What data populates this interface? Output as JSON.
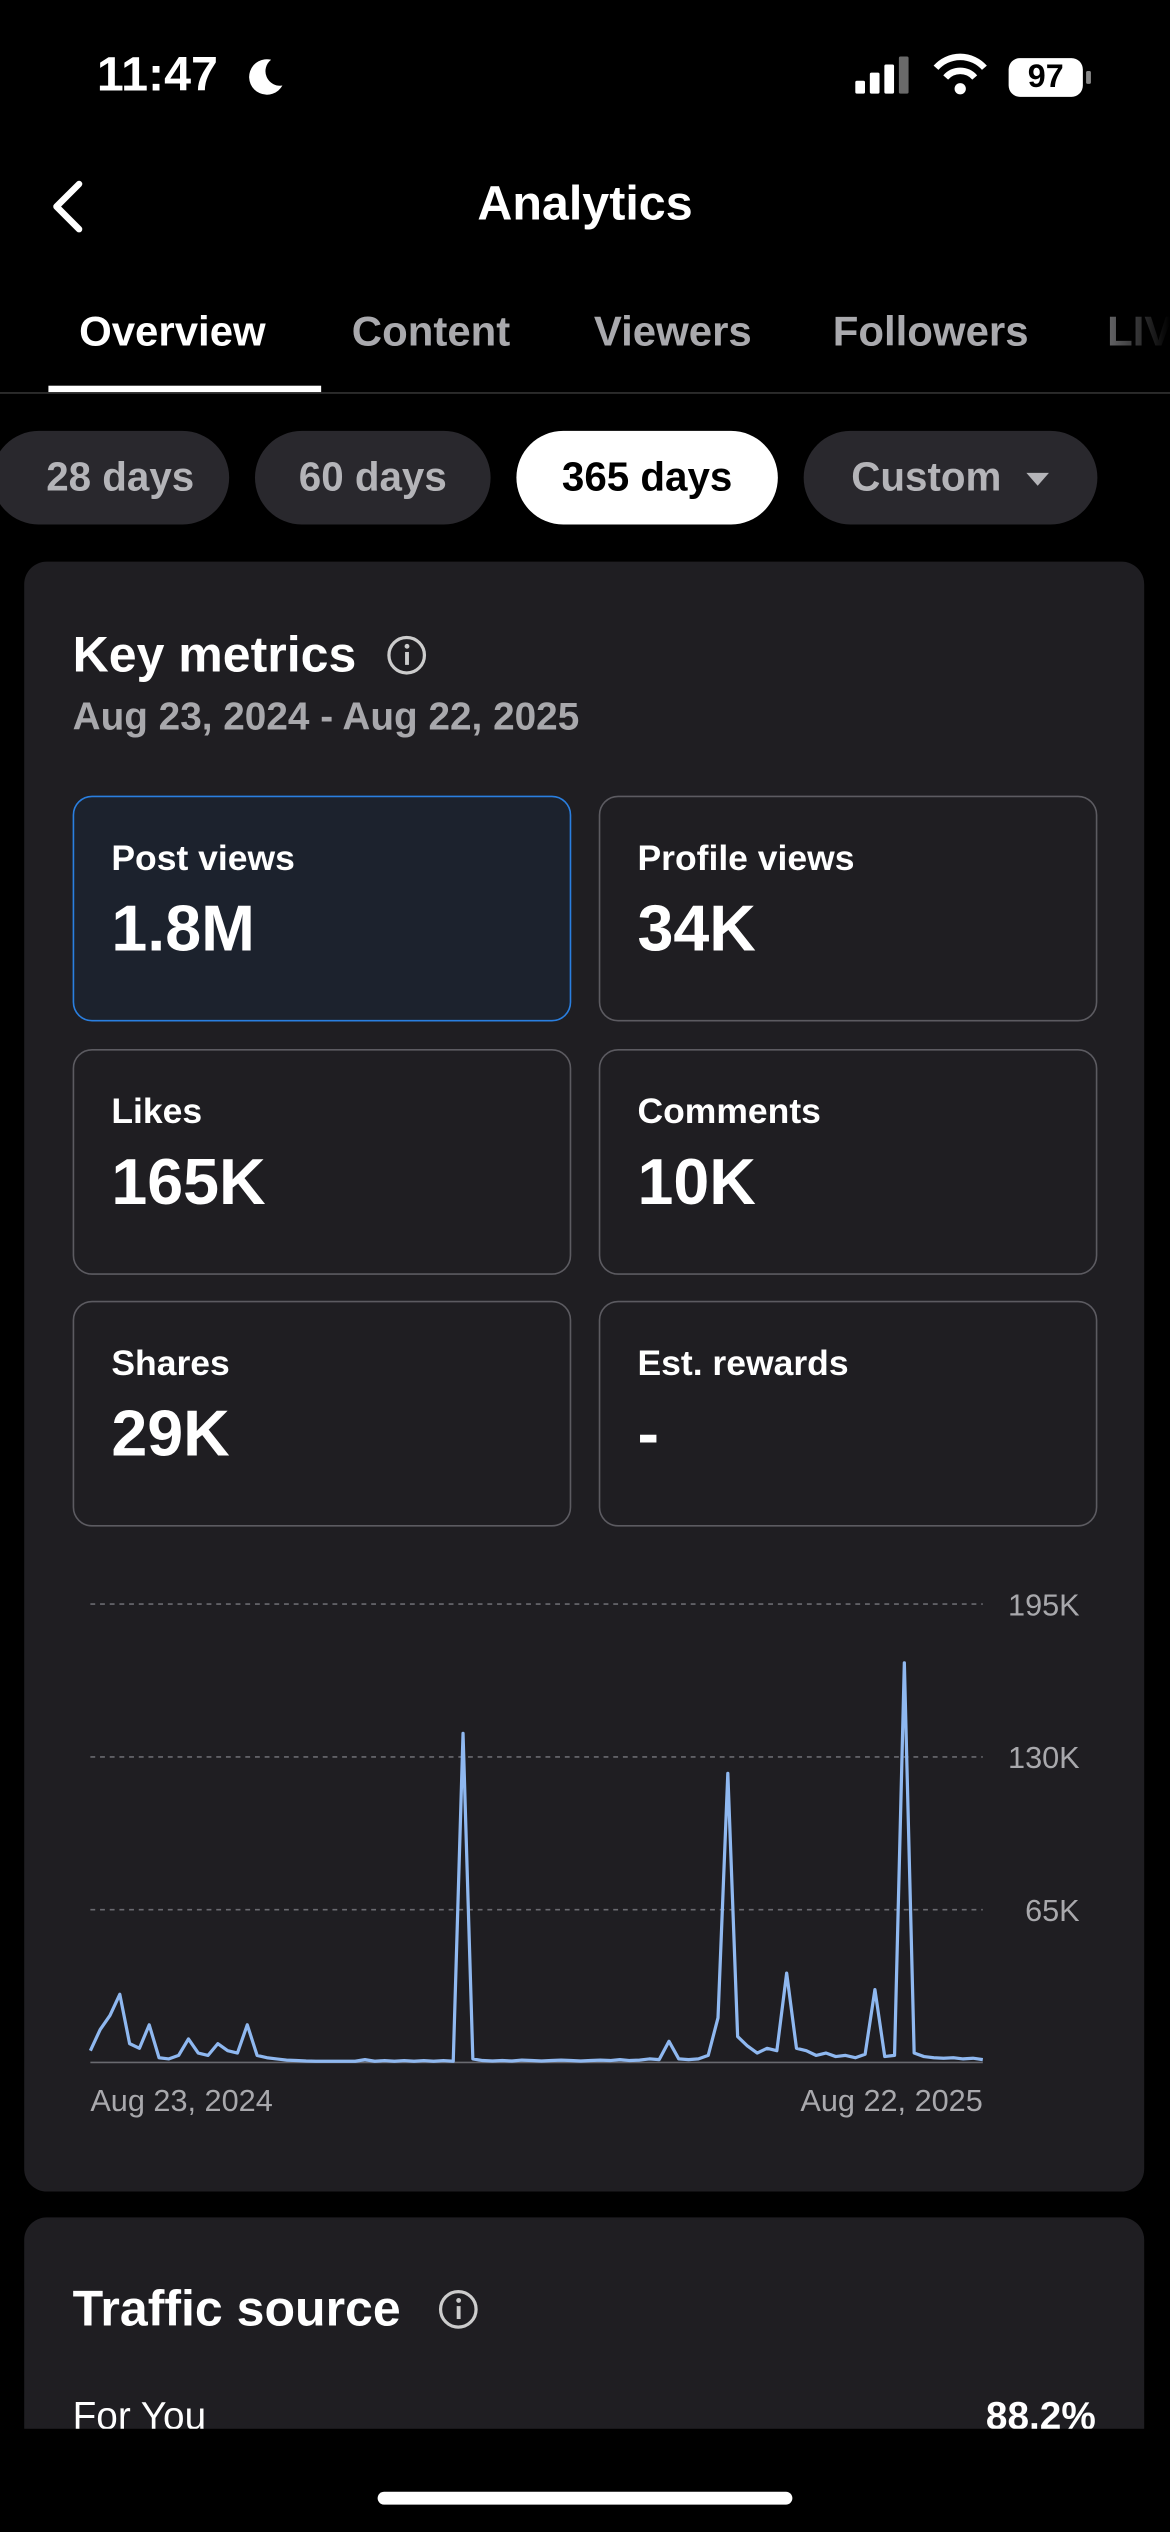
{
  "status_bar": {
    "time": "11:47",
    "battery": "97"
  },
  "header": {
    "title": "Analytics"
  },
  "tabs": {
    "items": [
      "Overview",
      "Content",
      "Viewers",
      "Followers",
      "LIVE"
    ],
    "selected": 0
  },
  "ranges": {
    "items": [
      "28 days",
      "60 days",
      "365 days",
      "Custom"
    ],
    "selected": 2
  },
  "key_metrics": {
    "title": "Key metrics",
    "date_range": "Aug 23, 2024 - Aug 22, 2025",
    "selected": 0,
    "items": [
      {
        "label": "Post views",
        "value": "1.8M"
      },
      {
        "label": "Profile views",
        "value": "34K"
      },
      {
        "label": "Likes",
        "value": "165K"
      },
      {
        "label": "Comments",
        "value": "10K"
      },
      {
        "label": "Shares",
        "value": "29K"
      },
      {
        "label": "Est. rewards",
        "value": "-"
      }
    ]
  },
  "chart_data": {
    "type": "line",
    "color": "#8fb8f0",
    "grid": true,
    "ylim": [
      0,
      195000
    ],
    "yticks": [
      {
        "value": 65000,
        "label": "65K"
      },
      {
        "value": 130000,
        "label": "130K"
      },
      {
        "value": 195000,
        "label": "195K"
      }
    ],
    "categories": [
      "Aug 23, 2024",
      null,
      null,
      null,
      null,
      null,
      null,
      null,
      null,
      null,
      null,
      null,
      null,
      null,
      null,
      null,
      null,
      null,
      null,
      null,
      null,
      null,
      null,
      null,
      null,
      null,
      null,
      null,
      null,
      null,
      null,
      null,
      null,
      null,
      null,
      null,
      null,
      null,
      null,
      null,
      null,
      null,
      null,
      null,
      null,
      null,
      null,
      null,
      null,
      null,
      null,
      null,
      null,
      null,
      null,
      null,
      null,
      null,
      null,
      null,
      null,
      null,
      null,
      null,
      null,
      null,
      null,
      null,
      null,
      null,
      null,
      null,
      null,
      null,
      null,
      null,
      null,
      null,
      null,
      null,
      null,
      null,
      null,
      null,
      null,
      null,
      null,
      null,
      null,
      null,
      null,
      "Aug 22, 2025"
    ],
    "values": [
      5000,
      14000,
      20000,
      29000,
      8000,
      6000,
      16000,
      2000,
      1500,
      3000,
      10000,
      4000,
      3000,
      8000,
      5000,
      4000,
      16000,
      3000,
      2000,
      1500,
      1000,
      800,
      600,
      500,
      500,
      500,
      500,
      500,
      1200,
      500,
      800,
      500,
      800,
      500,
      800,
      500,
      800,
      500,
      140000,
      1500,
      800,
      600,
      800,
      600,
      1000,
      800,
      600,
      800,
      1000,
      800,
      600,
      800,
      1000,
      800,
      1200,
      800,
      1000,
      1500,
      1200,
      9000,
      1500,
      1200,
      1500,
      3000,
      19000,
      123000,
      11000,
      7000,
      4000,
      6000,
      5000,
      38000,
      6000,
      5000,
      3000,
      4000,
      2500,
      3000,
      2000,
      3500,
      31000,
      2500,
      3000,
      170000,
      4000,
      2500,
      2000,
      1800,
      2000,
      1500,
      1800,
      1200
    ]
  },
  "traffic_source": {
    "title": "Traffic source",
    "rows": [
      {
        "label": "For You",
        "value": "88.2%"
      }
    ]
  }
}
